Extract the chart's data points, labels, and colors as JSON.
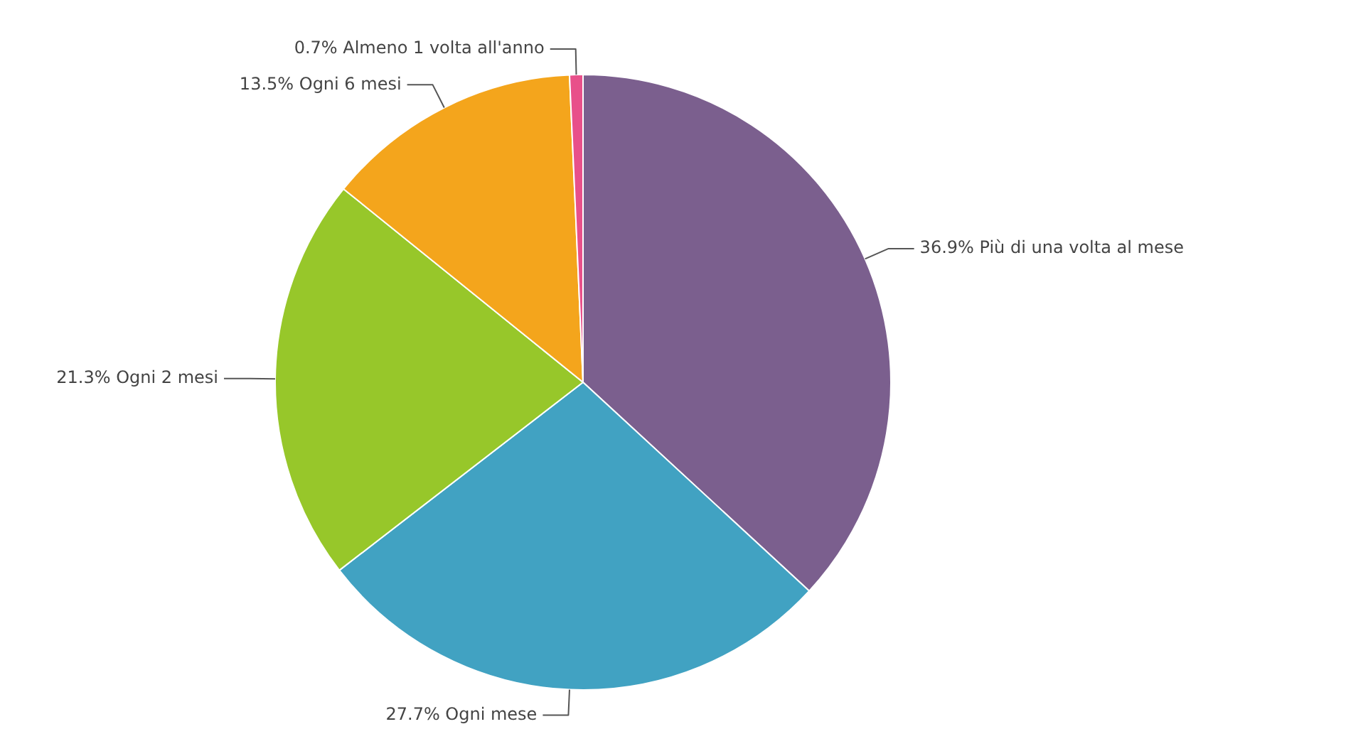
{
  "chart_data": {
    "type": "pie",
    "categories": [
      "Più di una volta al mese",
      "Ogni mese",
      "Ogni 2 mesi",
      "Ogni 6 mesi",
      "Almeno 1 volta all'anno"
    ],
    "values": [
      36.9,
      27.7,
      21.3,
      13.5,
      0.7
    ],
    "value_labels": [
      "36.9%",
      "27.7%",
      "21.3%",
      "13.5%",
      "0.7%"
    ],
    "colors": [
      "#7b5f8e",
      "#41a2c2",
      "#97c72a",
      "#f4a51c",
      "#e8508a"
    ],
    "legend": false
  }
}
